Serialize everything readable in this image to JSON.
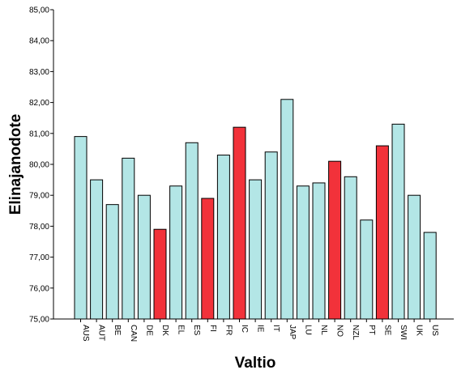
{
  "chart_data": {
    "type": "bar",
    "title": "",
    "xlabel": "Valtio",
    "ylabel": "Elinajanodote",
    "ylim": [
      75,
      85
    ],
    "yticks": [
      "75,00",
      "76,00",
      "77,00",
      "78,00",
      "79,00",
      "80,00",
      "81,00",
      "82,00",
      "83,00",
      "84,00",
      "85,00"
    ],
    "grid": false,
    "legend": "none",
    "categories": [
      "AUS",
      "AUT",
      "BE",
      "CAN",
      "DE",
      "DK",
      "EL",
      "ES",
      "FI",
      "FR",
      "IC",
      "IE",
      "IT",
      "JAP",
      "LU",
      "NL",
      "NO",
      "NZL",
      "PT",
      "SE",
      "SWI",
      "UK",
      "US"
    ],
    "values": [
      80.9,
      79.5,
      78.7,
      80.2,
      79.0,
      77.9,
      79.3,
      80.7,
      78.9,
      80.3,
      81.2,
      79.5,
      80.4,
      82.1,
      79.3,
      79.4,
      80.1,
      79.6,
      78.2,
      80.6,
      81.3,
      79.0,
      77.8
    ],
    "highlighted": [
      "DK",
      "FI",
      "IC",
      "NO",
      "SE"
    ],
    "colors": {
      "default": "#b3e6e6",
      "highlight": "#f2323a",
      "stroke": "#000000"
    }
  }
}
